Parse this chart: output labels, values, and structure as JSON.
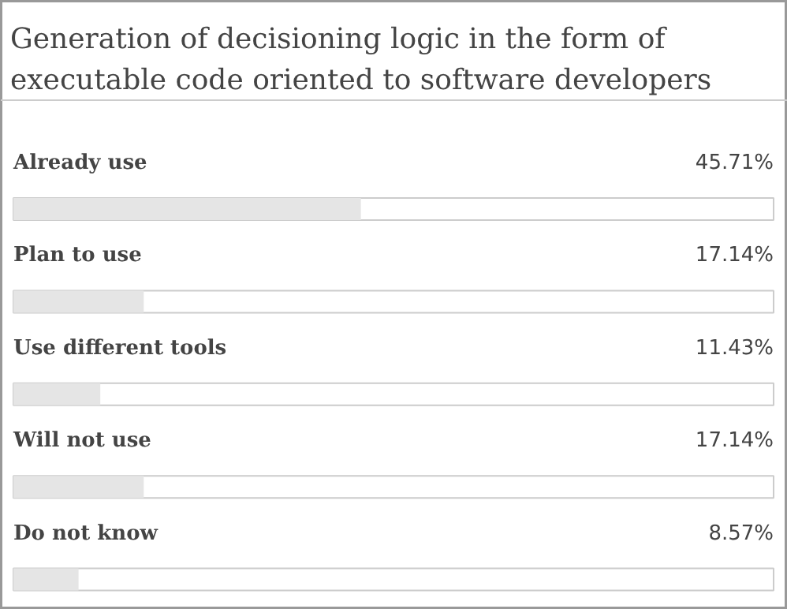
{
  "chart_data": {
    "type": "bar",
    "orientation": "horizontal",
    "title": "Generation of decisioning logic in the form of executable code oriented to software developers",
    "categories": [
      "Already use",
      "Plan to use",
      "Use different tools",
      "Will not use",
      "Do not know"
    ],
    "values": [
      45.71,
      17.14,
      11.43,
      17.14,
      8.57
    ],
    "value_labels": [
      "45.71%",
      "17.14%",
      "11.43%",
      "17.14%",
      "8.57%"
    ],
    "color": "#e5e5e5",
    "xlim": [
      0,
      100
    ]
  }
}
